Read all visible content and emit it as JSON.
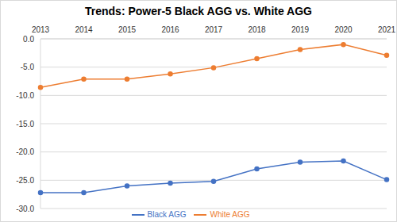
{
  "chart_data": {
    "type": "line",
    "title": "Trends: Power-5 Black AGG vs. White AGG",
    "categories": [
      "2013",
      "2014",
      "2015",
      "2016",
      "2017",
      "2018",
      "2019",
      "2020",
      "2021"
    ],
    "series": [
      {
        "name": "Black AGG",
        "color": "#4472c4",
        "marker": "circle",
        "line_style": "solid",
        "values": [
          -27.2,
          -27.2,
          -26.0,
          -25.5,
          -25.2,
          -23.0,
          -21.8,
          -21.6,
          -24.9
        ]
      },
      {
        "name": "White AGG",
        "color": "#ed7d31",
        "marker": "circle",
        "line_style": "solid",
        "values": [
          -8.6,
          -7.1,
          -7.1,
          -6.2,
          -5.1,
          -3.5,
          -1.9,
          -1.0,
          -2.9
        ]
      }
    ],
    "ylim": [
      -30,
      0
    ],
    "yticks": [
      {
        "value": 0,
        "label": "0.0"
      },
      {
        "value": -5,
        "label": "-5.0"
      },
      {
        "value": -10,
        "label": "-10.0"
      },
      {
        "value": -15,
        "label": "-15.0"
      },
      {
        "value": -20,
        "label": "-20.0"
      },
      {
        "value": -25,
        "label": "-25.0"
      },
      {
        "value": -30,
        "label": "-30.0"
      }
    ],
    "grid": true,
    "legend": "bottom"
  }
}
